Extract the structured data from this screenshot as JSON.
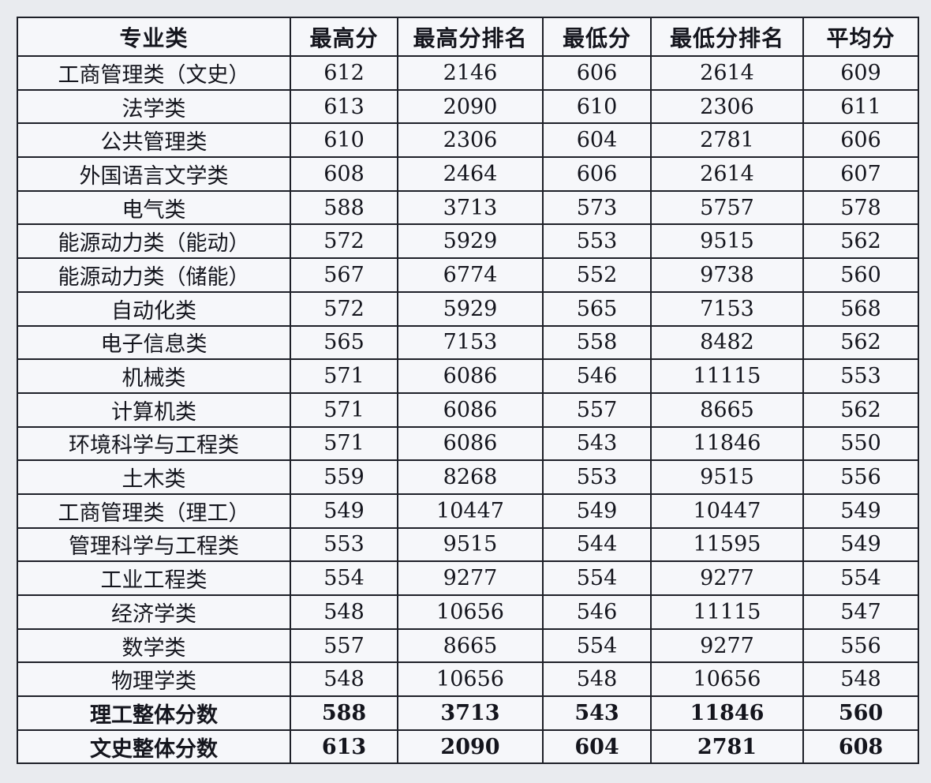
{
  "colors": {
    "page_background": "#e9ebef",
    "cell_background": "#f6f7fa",
    "border": "#1e2028",
    "text": "#14151d"
  },
  "chart_data": {
    "type": "table",
    "title": "",
    "columns": [
      "专业类",
      "最高分",
      "最高分排名",
      "最低分",
      "最低分排名",
      "平均分"
    ],
    "rows": [
      {
        "cells": [
          "工商管理类（文史）",
          "612",
          "2146",
          "606",
          "2614",
          "609"
        ],
        "bold": false
      },
      {
        "cells": [
          "法学类",
          "613",
          "2090",
          "610",
          "2306",
          "611"
        ],
        "bold": false
      },
      {
        "cells": [
          "公共管理类",
          "610",
          "2306",
          "604",
          "2781",
          "606"
        ],
        "bold": false
      },
      {
        "cells": [
          "外国语言文学类",
          "608",
          "2464",
          "606",
          "2614",
          "607"
        ],
        "bold": false
      },
      {
        "cells": [
          "电气类",
          "588",
          "3713",
          "573",
          "5757",
          "578"
        ],
        "bold": false
      },
      {
        "cells": [
          "能源动力类（能动）",
          "572",
          "5929",
          "553",
          "9515",
          "562"
        ],
        "bold": false
      },
      {
        "cells": [
          "能源动力类（储能）",
          "567",
          "6774",
          "552",
          "9738",
          "560"
        ],
        "bold": false
      },
      {
        "cells": [
          "自动化类",
          "572",
          "5929",
          "565",
          "7153",
          "568"
        ],
        "bold": false
      },
      {
        "cells": [
          "电子信息类",
          "565",
          "7153",
          "558",
          "8482",
          "562"
        ],
        "bold": false
      },
      {
        "cells": [
          "机械类",
          "571",
          "6086",
          "546",
          "11115",
          "553"
        ],
        "bold": false
      },
      {
        "cells": [
          "计算机类",
          "571",
          "6086",
          "557",
          "8665",
          "562"
        ],
        "bold": false
      },
      {
        "cells": [
          "环境科学与工程类",
          "571",
          "6086",
          "543",
          "11846",
          "550"
        ],
        "bold": false
      },
      {
        "cells": [
          "土木类",
          "559",
          "8268",
          "553",
          "9515",
          "556"
        ],
        "bold": false
      },
      {
        "cells": [
          "工商管理类（理工）",
          "549",
          "10447",
          "549",
          "10447",
          "549"
        ],
        "bold": false
      },
      {
        "cells": [
          "管理科学与工程类",
          "553",
          "9515",
          "544",
          "11595",
          "549"
        ],
        "bold": false
      },
      {
        "cells": [
          "工业工程类",
          "554",
          "9277",
          "554",
          "9277",
          "554"
        ],
        "bold": false
      },
      {
        "cells": [
          "经济学类",
          "548",
          "10656",
          "546",
          "11115",
          "547"
        ],
        "bold": false
      },
      {
        "cells": [
          "数学类",
          "557",
          "8665",
          "554",
          "9277",
          "556"
        ],
        "bold": false
      },
      {
        "cells": [
          "物理学类",
          "548",
          "10656",
          "548",
          "10656",
          "548"
        ],
        "bold": false
      },
      {
        "cells": [
          "理工整体分数",
          "588",
          "3713",
          "543",
          "11846",
          "560"
        ],
        "bold": true
      },
      {
        "cells": [
          "文史整体分数",
          "613",
          "2090",
          "604",
          "2781",
          "608"
        ],
        "bold": true
      }
    ]
  }
}
